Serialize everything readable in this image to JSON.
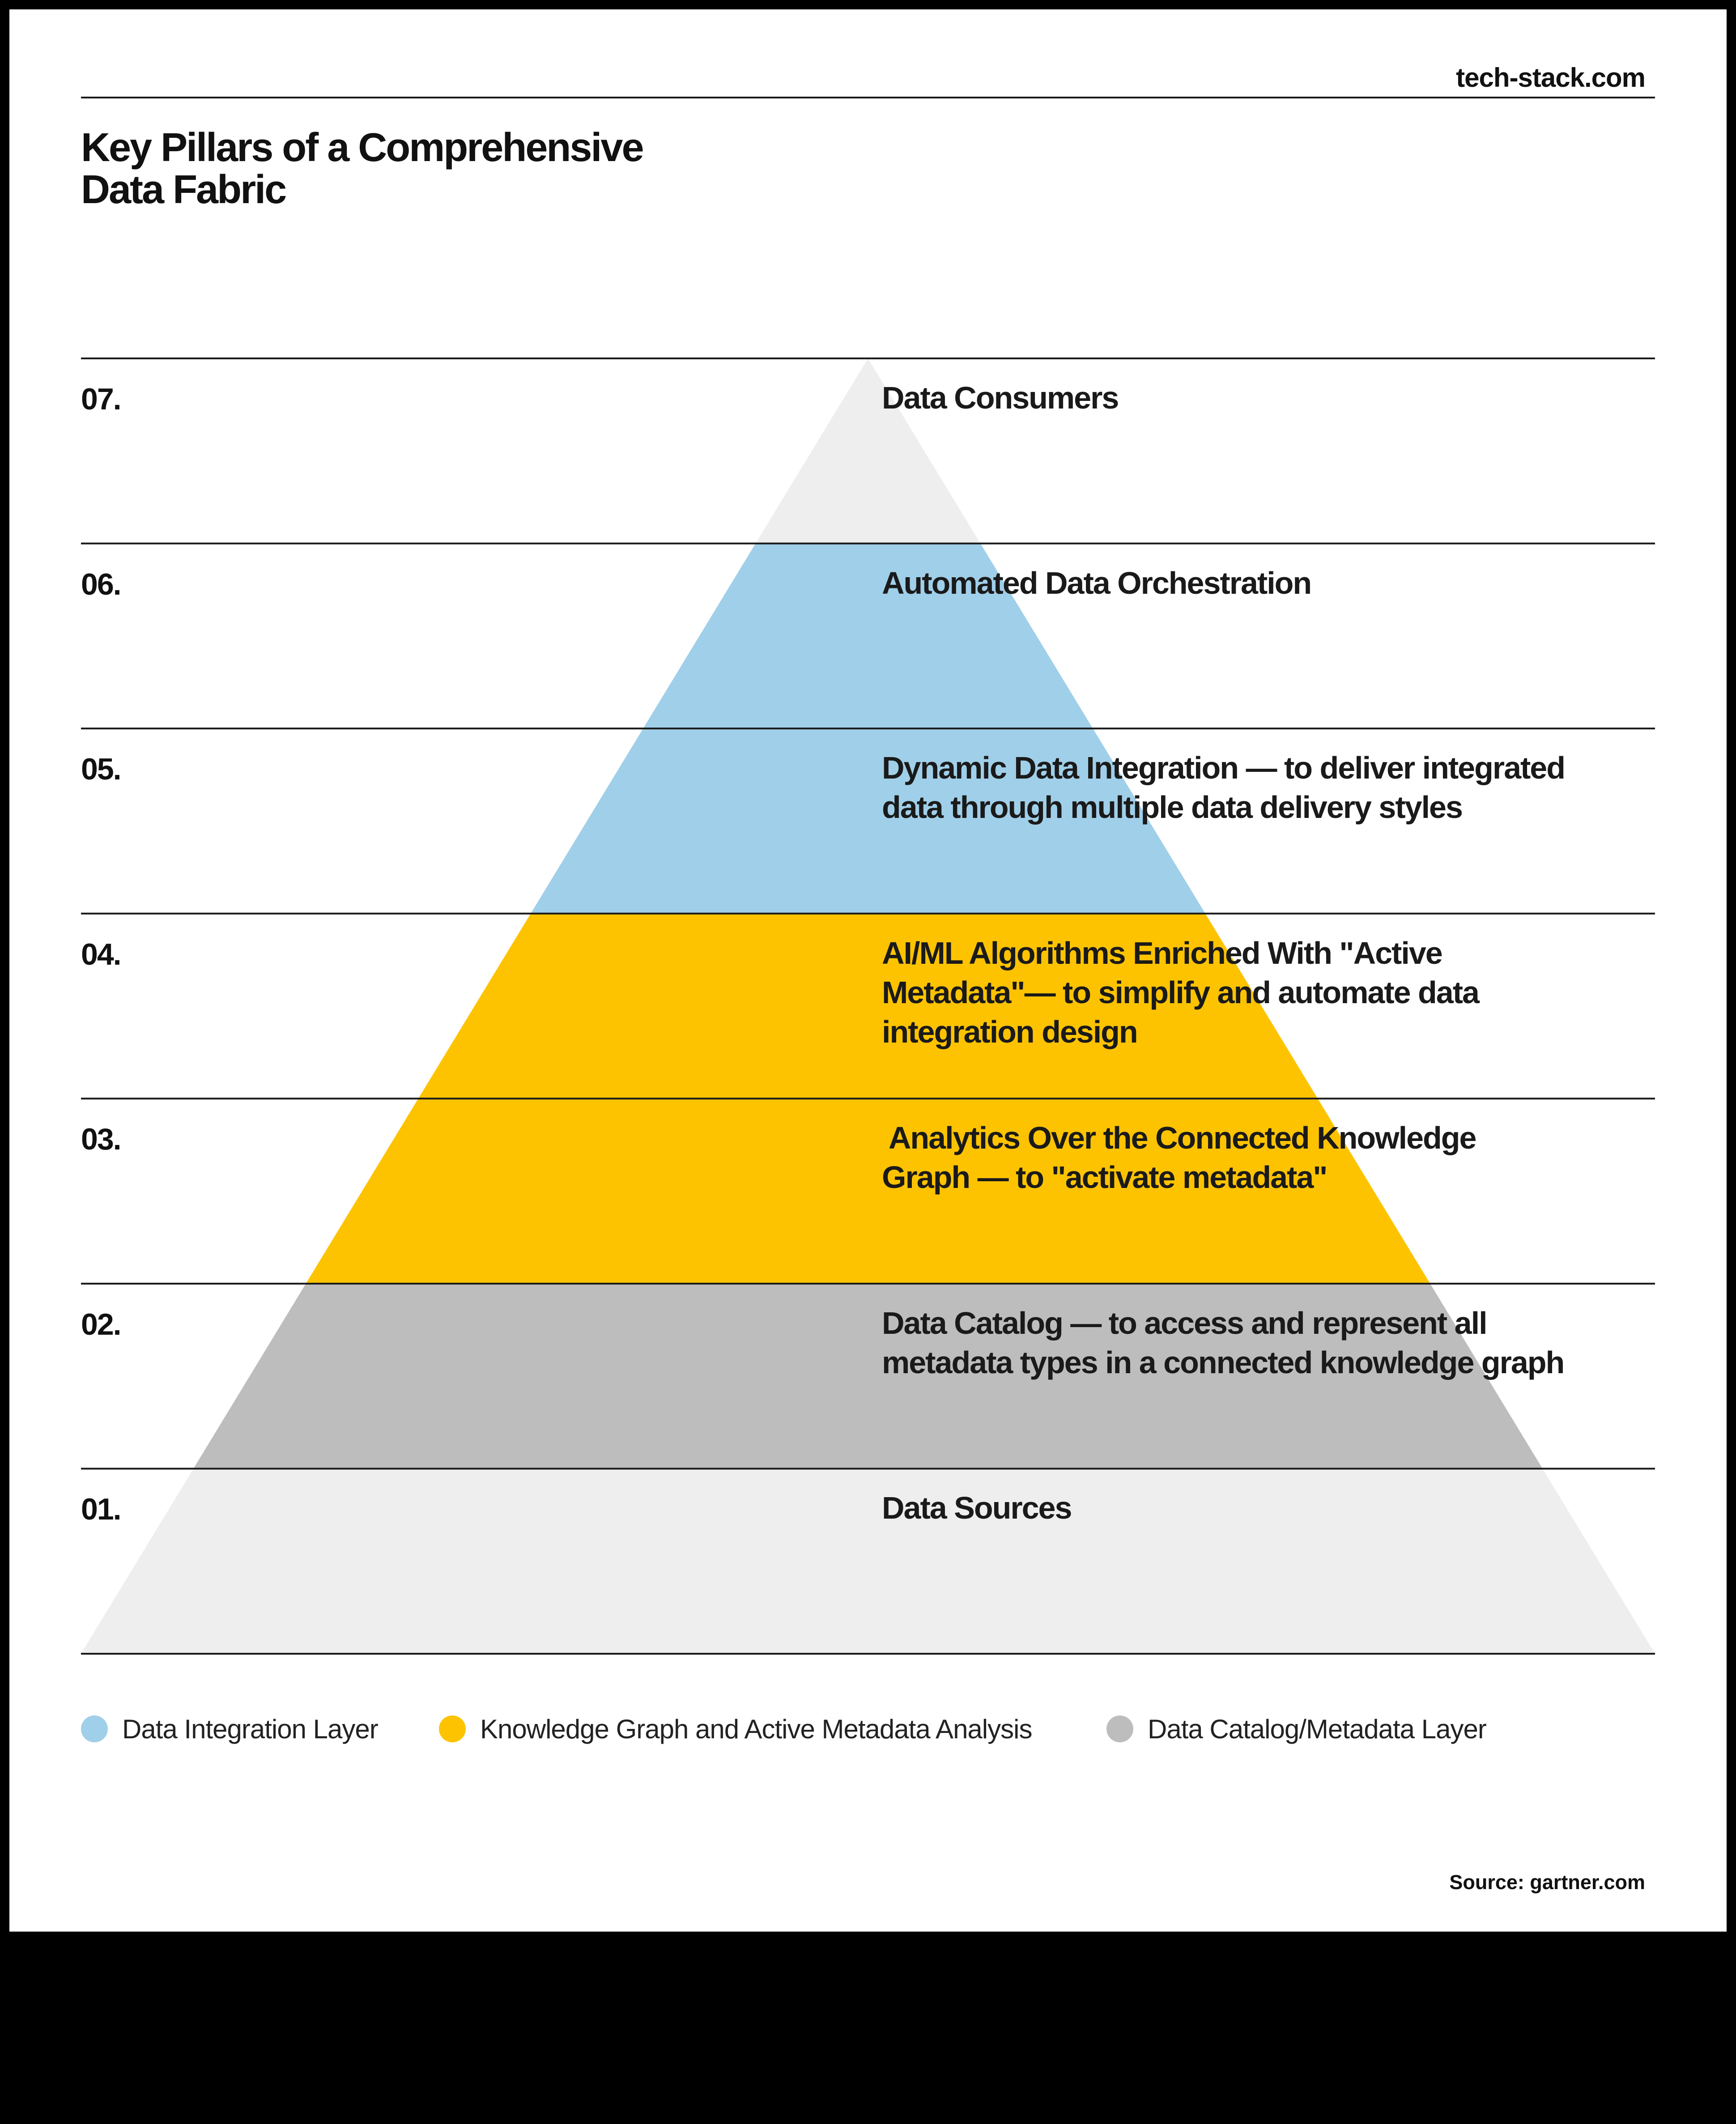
{
  "header": {
    "site": "tech-stack.com",
    "title_line1": "Key Pillars of a Comprehensive",
    "title_line2": "Data Fabric"
  },
  "colors": {
    "integration": "#a0cfe9",
    "knowledge": "#fdc300",
    "catalog": "#bdbdbd",
    "outer": "#eeeeee",
    "text": "#1a1a1a"
  },
  "layers": [
    {
      "number": "07.",
      "lines": [
        "Data Consumers"
      ],
      "group": "outer"
    },
    {
      "number": "06.",
      "lines": [
        "Automated Data Orchestration"
      ],
      "group": "integration"
    },
    {
      "number": "05.",
      "lines": [
        "Dynamic Data Integration — to deliver integrated",
        "data through multiple data delivery styles"
      ],
      "group": "integration"
    },
    {
      "number": "04.",
      "lines": [
        "AI/ML Algorithms Enriched With \"Active",
        "Metadata\"— to simplify and automate data",
        "integration design"
      ],
      "group": "knowledge"
    },
    {
      "number": "03.",
      "lines": [
        " Analytics Over the Connected Knowledge",
        "Graph — to \"activate metadata\""
      ],
      "group": "knowledge"
    },
    {
      "number": "02.",
      "lines": [
        "Data Catalog — to access and represent all",
        "metadata types in a connected knowledge graph"
      ],
      "group": "catalog"
    },
    {
      "number": "01.",
      "lines": [
        "Data Sources"
      ],
      "group": "outer"
    }
  ],
  "legend": [
    {
      "label": "Data Integration Layer",
      "color": "#a0cfe9"
    },
    {
      "label": "Knowledge Graph and Active Metadata Analysis",
      "color": "#fdc300"
    },
    {
      "label": "Data Catalog/Metadata Layer",
      "color": "#bdbdbd"
    }
  ],
  "source": "Source: gartner.com"
}
